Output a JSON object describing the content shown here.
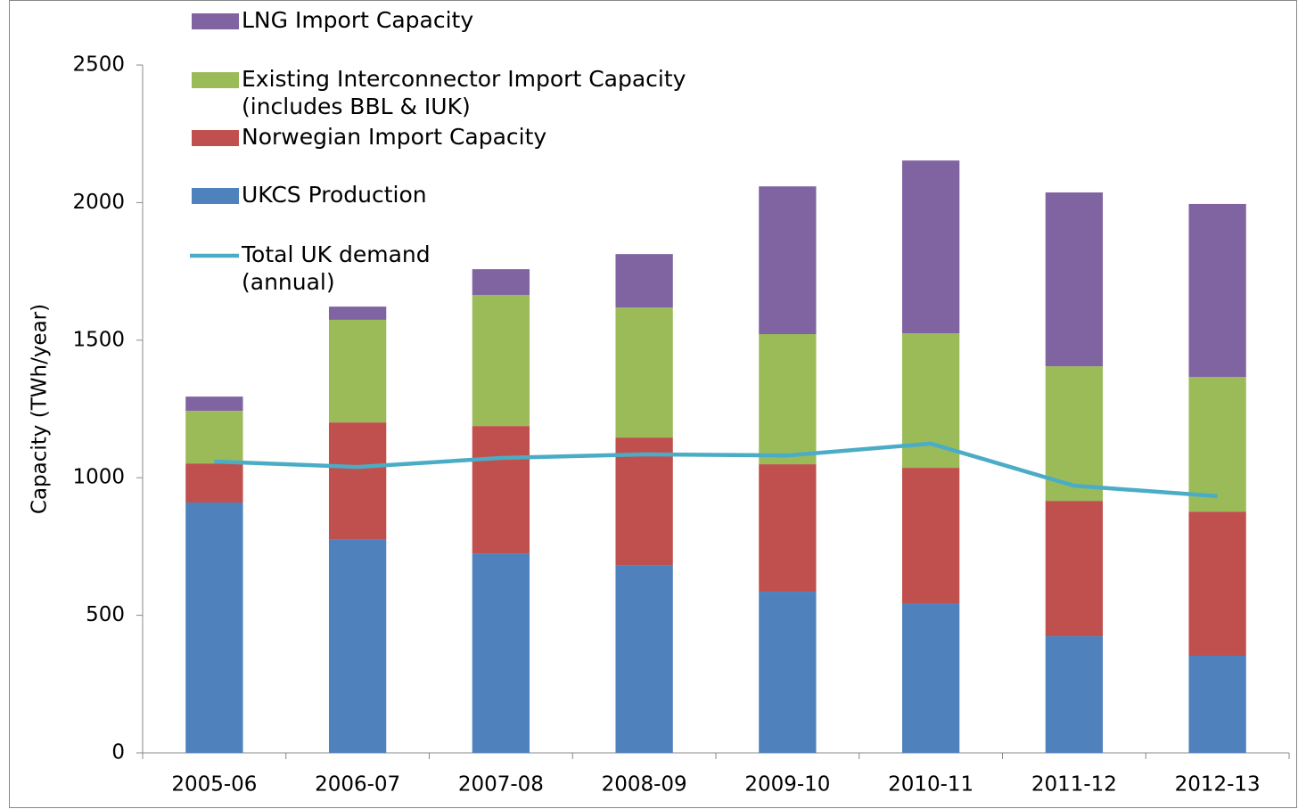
{
  "chart_data": {
    "type": "bar",
    "stacked": true,
    "y_label": "Capacity (TWh/year)",
    "categories": [
      "2005-06",
      "2006-07",
      "2007-08",
      "2008-09",
      "2009-10",
      "2010-11",
      "2011-12",
      "2012-13"
    ],
    "series": [
      {
        "name": "UKCS Production",
        "color": "#4f81bd",
        "values": [
          910,
          777,
          725,
          683,
          586,
          544,
          424,
          353
        ]
      },
      {
        "name": "Norwegian Import Capacity",
        "color": "#c0504d",
        "values": [
          142,
          424,
          463,
          463,
          463,
          492,
          492,
          524
        ]
      },
      {
        "name": "Existing Interconnector Import Capacity (includes BBL & IUK)",
        "color": "#9bbb59",
        "values": [
          191,
          373,
          476,
          473,
          473,
          489,
          489,
          489
        ]
      },
      {
        "name": "LNG Import Capacity",
        "color": "#8064a2",
        "values": [
          52,
          48,
          94,
          194,
          537,
          628,
          632,
          629
        ]
      },
      {
        "name": "Total UK demand (annual)",
        "type": "line",
        "color": "#4bacc6",
        "values": [
          1059,
          1039,
          1072,
          1085,
          1081,
          1124,
          971,
          933
        ]
      }
    ],
    "ylim": [
      0,
      2500
    ],
    "yticks": [
      0,
      500,
      1000,
      1500,
      2000,
      2500
    ],
    "grid": false,
    "legend_order": [
      3,
      2,
      1,
      0,
      4
    ]
  }
}
